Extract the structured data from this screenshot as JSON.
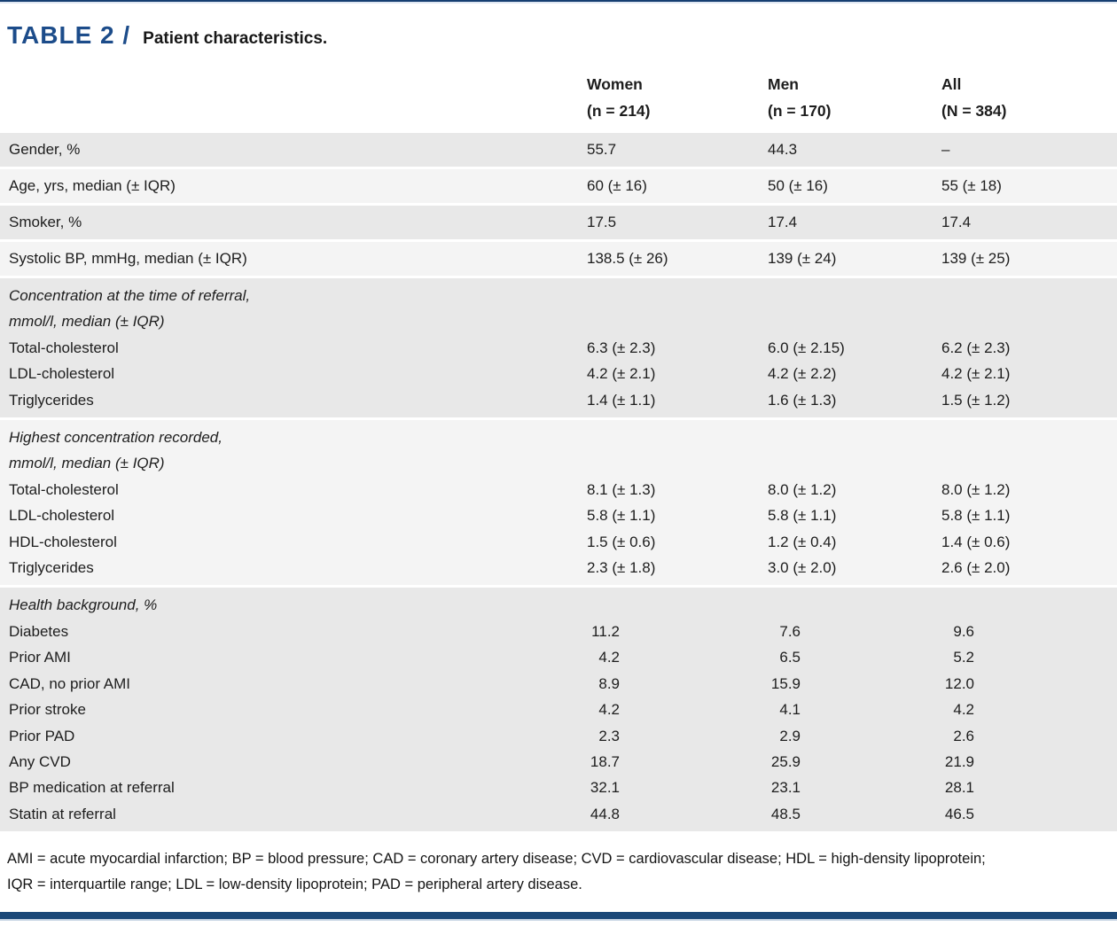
{
  "page": {
    "table_label": "TABLE 2 /",
    "table_title": "Patient characteristics."
  },
  "colors": {
    "accent_navy": "#1c4c8a",
    "rule_navy": "#1b4878",
    "band_dark": "#e8e8e8",
    "band_light": "#f4f4f4"
  },
  "table": {
    "header": {
      "columns": [
        {
          "line1": "Women",
          "line2": "(n = 214)"
        },
        {
          "line1": "Men",
          "line2": "(n = 170)"
        },
        {
          "line1": "All",
          "line2": "(N = 384)"
        }
      ]
    },
    "groups": [
      {
        "type": "single",
        "shade": "dark",
        "label": "Gender, %",
        "values": [
          "55.7",
          "44.3",
          "–"
        ]
      },
      {
        "type": "single",
        "shade": "light",
        "label": "Age, yrs, median (± IQR)",
        "values": [
          "60 (± 16)",
          "50 (± 16)",
          "55 (± 18)"
        ]
      },
      {
        "type": "single",
        "shade": "dark",
        "label": "Smoker, %",
        "values": [
          "17.5",
          "17.4",
          "17.4"
        ]
      },
      {
        "type": "single",
        "shade": "light",
        "label": "Systolic BP, mmHg, median (± IQR)",
        "values": [
          "138.5 (± 26)",
          "139 (± 24)",
          "139 (± 25)"
        ]
      },
      {
        "type": "section",
        "shade": "dark",
        "heading": [
          "Concentration at the time of referral,",
          "mmol/l, median (± IQR)"
        ],
        "rows": [
          {
            "label": "Total-cholesterol",
            "values": [
              "6.3 (± 2.3)",
              "6.0 (± 2.15)",
              "6.2 (± 2.3)"
            ]
          },
          {
            "label": "LDL-cholesterol",
            "values": [
              "4.2 (± 2.1)",
              "4.2 (± 2.2)",
              "4.2 (± 2.1)"
            ]
          },
          {
            "label": "Triglycerides",
            "values": [
              "1.4 (± 1.1)",
              "1.6 (± 1.3)",
              "1.5 (± 1.2)"
            ]
          }
        ]
      },
      {
        "type": "section",
        "shade": "light",
        "heading": [
          "Highest concentration recorded,",
          "mmol/l, median (± IQR)"
        ],
        "rows": [
          {
            "label": "Total-cholesterol",
            "values": [
              "8.1 (± 1.3)",
              "8.0 (± 1.2)",
              "8.0 (± 1.2)"
            ]
          },
          {
            "label": "LDL-cholesterol",
            "values": [
              "5.8 (± 1.1)",
              "5.8 (± 1.1)",
              "5.8 (± 1.1)"
            ]
          },
          {
            "label": "HDL-cholesterol",
            "values": [
              "1.5 (± 0.6)",
              "1.2 (± 0.4)",
              "1.4 (± 0.6)"
            ]
          },
          {
            "label": "Triglycerides",
            "values": [
              "2.3 (± 1.8)",
              "3.0 (± 2.0)",
              "2.6 (± 2.0)"
            ]
          }
        ]
      },
      {
        "type": "section",
        "shade": "dark",
        "align": "decimal",
        "heading": [
          "Health background, %"
        ],
        "rows": [
          {
            "label": "Diabetes",
            "values": [
              "11.2",
              "7.6",
              "9.6"
            ]
          },
          {
            "label": "Prior AMI",
            "values": [
              "4.2",
              "6.5",
              "5.2"
            ]
          },
          {
            "label": "CAD, no prior AMI",
            "values": [
              "8.9",
              "15.9",
              "12.0"
            ]
          },
          {
            "label": "Prior stroke",
            "values": [
              "4.2",
              "4.1",
              "4.2"
            ]
          },
          {
            "label": "Prior PAD",
            "values": [
              "2.3",
              "2.9",
              "2.6"
            ]
          },
          {
            "label": "Any CVD",
            "values": [
              "18.7",
              "25.9",
              "21.9"
            ]
          },
          {
            "label": "BP medication at referral",
            "values": [
              "32.1",
              "23.1",
              "28.1"
            ]
          },
          {
            "label": "Statin at referral",
            "values": [
              "44.8",
              "48.5",
              "46.5"
            ]
          }
        ]
      }
    ]
  },
  "footnote": {
    "line1": "AMI = acute myocardial infarction; BP = blood pressure; CAD = coronary artery disease; CVD = cardiovascular disease; HDL = high-density lipoprotein;",
    "line2": "IQR = interquartile range; LDL = low-density lipoprotein; PAD = peripheral artery disease."
  }
}
